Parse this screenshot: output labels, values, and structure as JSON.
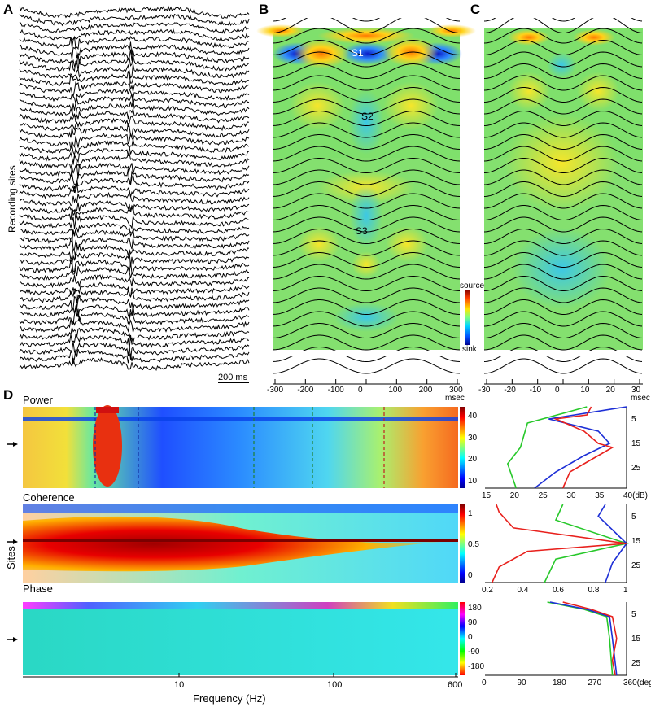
{
  "panels": {
    "A": {
      "label": "A",
      "ylabel": "Recording sites",
      "scalebar": "200 ms"
    },
    "B": {
      "label": "B",
      "sinks": [
        "S1",
        "S2",
        "S3"
      ],
      "colorbar_top": "source",
      "colorbar_bottom": "sink",
      "x_ticks": [
        "-300",
        "-200",
        "-100",
        "0",
        "100",
        "200",
        "300"
      ],
      "x_unit": "msec"
    },
    "C": {
      "label": "C",
      "x_ticks": [
        "-30",
        "-20",
        "-10",
        "0",
        "10",
        "20",
        "30"
      ],
      "x_unit": "msec"
    },
    "D": {
      "label": "D",
      "ylabel": "Sites",
      "xlabel": "Frequency (Hz)",
      "x_ticks": [
        "10",
        "100",
        "600"
      ]
    }
  },
  "chart_data": [
    {
      "type": "heatmap",
      "title": "Power",
      "colorbar_ticks": [
        "10",
        "20",
        "30",
        "40"
      ]
    },
    {
      "type": "line",
      "title": "",
      "x_ticks": [
        "15",
        "20",
        "25",
        "30",
        "35",
        "40(dB)"
      ],
      "y_ticks": [
        "5",
        "15",
        "25"
      ],
      "series": [
        {
          "color": "#e8201c"
        },
        {
          "color": "#1d2fd6"
        },
        {
          "color": "#27c82a"
        }
      ]
    },
    {
      "type": "heatmap",
      "title": "Coherence",
      "colorbar_ticks": [
        "0",
        "0.5",
        "1"
      ]
    },
    {
      "type": "line",
      "title": "",
      "x_ticks": [
        "0.2",
        "0.4",
        "0.6",
        "0.8",
        "1"
      ],
      "y_ticks": [
        "5",
        "15",
        "25"
      ],
      "series": [
        {
          "color": "#e8201c"
        },
        {
          "color": "#1d2fd6"
        },
        {
          "color": "#27c82a"
        }
      ]
    },
    {
      "type": "heatmap",
      "title": "Phase",
      "colorbar_ticks": [
        "180",
        "90",
        "0",
        "-90",
        "-180"
      ]
    },
    {
      "type": "line",
      "title": "",
      "x_ticks": [
        "0",
        "90",
        "180",
        "270",
        "360(deg)"
      ],
      "y_ticks": [
        "5",
        "15",
        "25"
      ],
      "series": [
        {
          "color": "#e8201c"
        },
        {
          "color": "#1d2fd6"
        },
        {
          "color": "#27c82a"
        }
      ]
    }
  ]
}
